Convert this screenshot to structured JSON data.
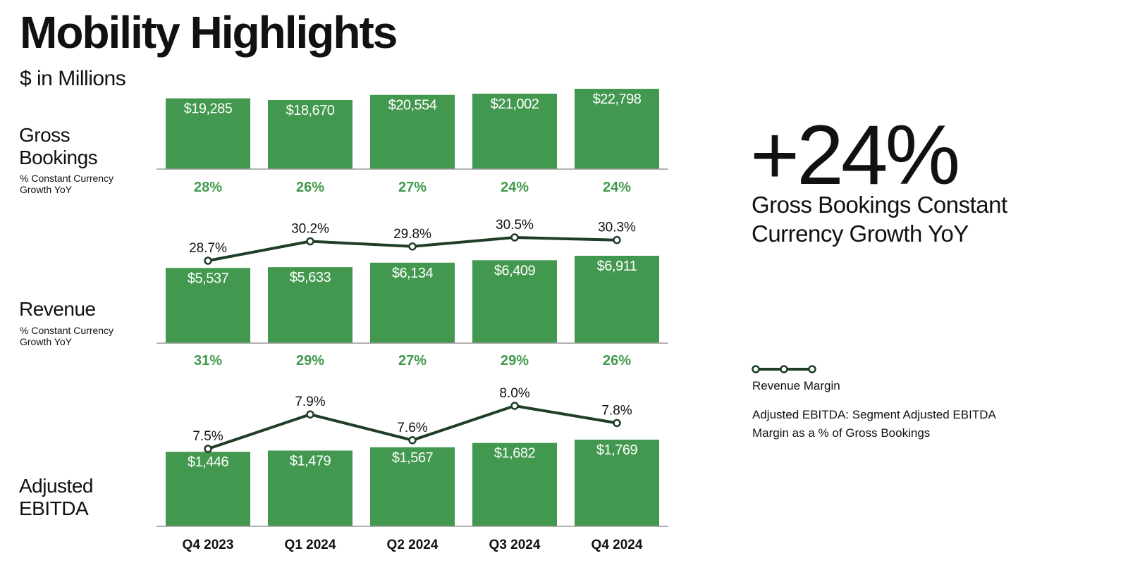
{
  "header": {
    "title": "Mobility Highlights",
    "subtitle": "$ in Millions"
  },
  "rows": {
    "gross_bookings": {
      "label_line1": "Gross",
      "label_line2": "Bookings",
      "sub_line1": "% Constant Currency",
      "sub_line2": "Growth YoY"
    },
    "revenue": {
      "label": "Revenue",
      "sub_line1": "% Constant Currency",
      "sub_line2": "Growth YoY"
    },
    "adjusted_ebitda": {
      "label_line1": "Adjusted",
      "label_line2": "EBITDA"
    }
  },
  "side_panel": {
    "big_stat": "+24%",
    "big_stat_label": "Gross Bookings Constant Currency Growth YoY",
    "legend_label": "Revenue Margin",
    "legend_note": "Adjusted EBITDA: Segment Adjusted EBITDA Margin as a % of Gross Bookings"
  },
  "colors": {
    "bar": "#43984F",
    "growth_text": "#3F9A4B",
    "line": "#1F3D27",
    "axis": "#9A9A9A"
  },
  "chart_data": [
    {
      "type": "bar",
      "title": "Gross Bookings",
      "categories": [
        "Q4 2023",
        "Q1 2024",
        "Q2 2024",
        "Q3 2024",
        "Q4 2024"
      ],
      "values": [
        19285,
        18670,
        20554,
        21002,
        22798
      ],
      "value_labels": [
        "$19,285",
        "$18,670",
        "$20,554",
        "$21,002",
        "$22,798"
      ],
      "growth_labels": [
        "28%",
        "26%",
        "27%",
        "24%",
        "24%"
      ]
    },
    {
      "type": "bar",
      "title": "Revenue",
      "categories": [
        "Q4 2023",
        "Q1 2024",
        "Q2 2024",
        "Q3 2024",
        "Q4 2024"
      ],
      "values": [
        5537,
        5633,
        6134,
        6409,
        6911
      ],
      "value_labels": [
        "$5,537",
        "$5,633",
        "$6,134",
        "$6,409",
        "$6,911"
      ],
      "growth_labels": [
        "31%",
        "29%",
        "27%",
        "29%",
        "26%"
      ],
      "line": {
        "name": "Revenue Margin",
        "values": [
          28.7,
          30.2,
          29.8,
          30.5,
          30.3
        ],
        "labels": [
          "28.7%",
          "30.2%",
          "29.8%",
          "30.5%",
          "30.3%"
        ]
      }
    },
    {
      "type": "bar",
      "title": "Adjusted EBITDA",
      "categories": [
        "Q4 2023",
        "Q1 2024",
        "Q2 2024",
        "Q3 2024",
        "Q4 2024"
      ],
      "values": [
        1446,
        1479,
        1567,
        1682,
        1769
      ],
      "value_labels": [
        "$1,446",
        "$1,479",
        "$1,567",
        "$1,682",
        "$1,769"
      ],
      "line": {
        "values": [
          7.5,
          7.9,
          7.6,
          8.0,
          7.8
        ],
        "labels": [
          "7.5%",
          "7.9%",
          "7.6%",
          "8.0%",
          "7.8%"
        ]
      }
    }
  ]
}
